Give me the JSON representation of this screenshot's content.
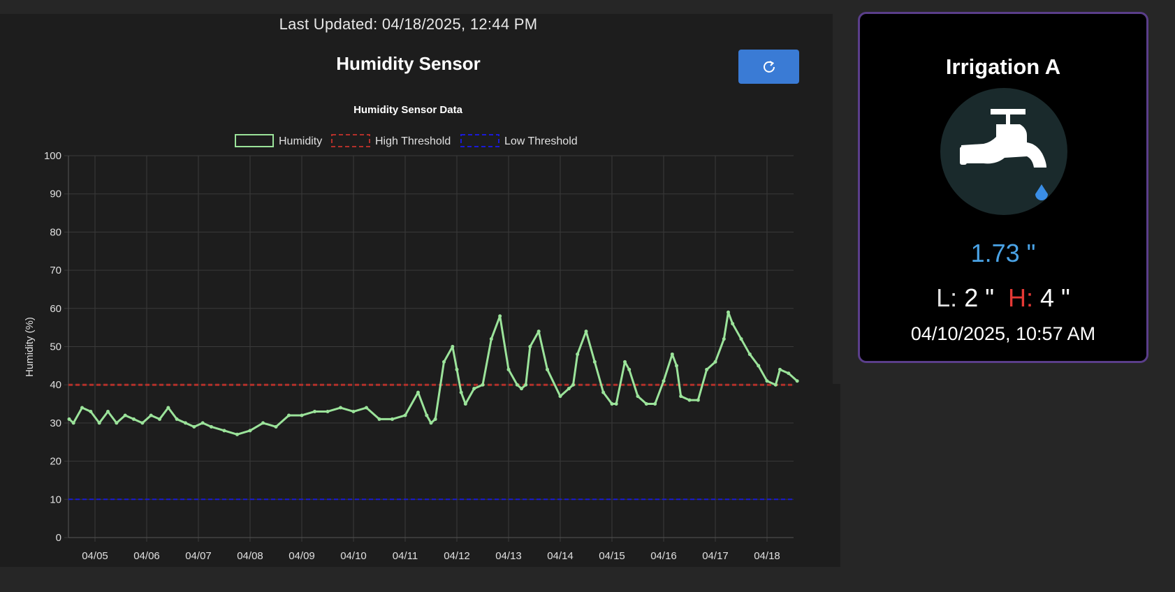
{
  "header": {
    "last_updated": "Last Updated: 04/18/2025, 12:44 PM",
    "sensor_title": "Humidity Sensor",
    "refresh_icon": "refresh-icon"
  },
  "device": {
    "name": "Irrigation A",
    "icon": "faucet-icon",
    "reading": "1.73 \"",
    "low_label": "L:",
    "low_value": "2 \"",
    "high_label": "H:",
    "high_value": "4 \"",
    "timestamp": "04/10/2025, 10:57 AM"
  },
  "colors": {
    "humidity": "#9be39a",
    "high_threshold": "#b3302a",
    "low_threshold": "#1a1ad6",
    "accent": "#3a7bd5",
    "card_border": "#5a3e8a"
  },
  "chart_data": {
    "type": "line",
    "title": "Humidity Sensor Data",
    "ylabel": "Humidity (%)",
    "xlabel": "",
    "ylim": [
      0,
      100
    ],
    "yticks": [
      0,
      10,
      20,
      30,
      40,
      50,
      60,
      70,
      80,
      90,
      100
    ],
    "xlim": [
      "04/04 12:00",
      "04/18 14:00"
    ],
    "xticks": [
      "04/05",
      "04/06",
      "04/07",
      "04/08",
      "04/09",
      "04/10",
      "04/11",
      "04/12",
      "04/13",
      "04/14",
      "04/15",
      "04/16",
      "04/17",
      "04/18"
    ],
    "grid": true,
    "legend_position": "top-center",
    "series": [
      {
        "name": "Humidity",
        "x": [
          "04/04 12:00",
          "04/04 14:00",
          "04/04 18:00",
          "04/04 22:00",
          "04/05 02:00",
          "04/05 06:00",
          "04/05 10:00",
          "04/05 14:00",
          "04/05 18:00",
          "04/05 22:00",
          "04/06 02:00",
          "04/06 06:00",
          "04/06 10:00",
          "04/06 14:00",
          "04/06 18:00",
          "04/06 22:00",
          "04/07 02:00",
          "04/07 06:00",
          "04/07 12:00",
          "04/07 18:00",
          "04/08 00:00",
          "04/08 06:00",
          "04/08 12:00",
          "04/08 18:00",
          "04/09 00:00",
          "04/09 06:00",
          "04/09 12:00",
          "04/09 18:00",
          "04/10 00:00",
          "04/10 06:00",
          "04/10 12:00",
          "04/10 18:00",
          "04/11 00:00",
          "04/11 06:00",
          "04/11 10:00",
          "04/11 12:00",
          "04/11 14:00",
          "04/11 18:00",
          "04/11 22:00",
          "04/12 00:00",
          "04/12 02:00",
          "04/12 04:00",
          "04/12 08:00",
          "04/12 12:00",
          "04/12 16:00",
          "04/12 20:00",
          "04/13 00:00",
          "04/13 04:00",
          "04/13 06:00",
          "04/13 08:00",
          "04/13 10:00",
          "04/13 14:00",
          "04/13 18:00",
          "04/14 00:00",
          "04/14 04:00",
          "04/14 06:00",
          "04/14 08:00",
          "04/14 12:00",
          "04/14 16:00",
          "04/14 20:00",
          "04/15 00:00",
          "04/15 02:00",
          "04/15 06:00",
          "04/15 08:00",
          "04/15 12:00",
          "04/15 16:00",
          "04/15 20:00",
          "04/16 00:00",
          "04/16 04:00",
          "04/16 06:00",
          "04/16 08:00",
          "04/16 12:00",
          "04/16 16:00",
          "04/16 20:00",
          "04/17 00:00",
          "04/17 04:00",
          "04/17 06:00",
          "04/17 08:00",
          "04/17 12:00",
          "04/17 16:00",
          "04/17 20:00",
          "04/18 00:00",
          "04/18 04:00",
          "04/18 06:00",
          "04/18 10:00",
          "04/18 14:00"
        ],
        "y": [
          31,
          30,
          34,
          33,
          30,
          33,
          30,
          32,
          31,
          30,
          32,
          31,
          34,
          31,
          30,
          29,
          30,
          29,
          28,
          27,
          28,
          30,
          29,
          32,
          32,
          33,
          33,
          34,
          33,
          34,
          31,
          31,
          32,
          38,
          32,
          30,
          31,
          46,
          50,
          44,
          38,
          35,
          39,
          40,
          52,
          58,
          44,
          40,
          39,
          40,
          50,
          54,
          44,
          37,
          39,
          40,
          48,
          54,
          46,
          38,
          35,
          35,
          46,
          44,
          37,
          35,
          35,
          41,
          48,
          45,
          37,
          36,
          36,
          44,
          46,
          52,
          59,
          56,
          52,
          48,
          45,
          41,
          40,
          44,
          43,
          41
        ],
        "color": "#9be39a"
      },
      {
        "name": "High Threshold",
        "value": 40,
        "color": "#b3302a",
        "style": "dashed"
      },
      {
        "name": "Low Threshold",
        "value": 10,
        "color": "#1a1ad6",
        "style": "dashed"
      }
    ]
  }
}
